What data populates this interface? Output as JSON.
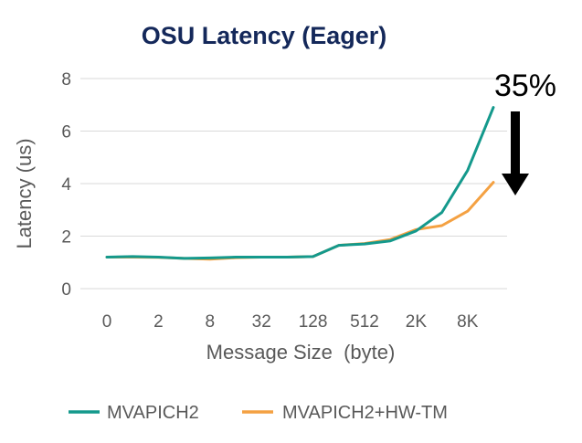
{
  "chart_data": {
    "type": "line",
    "title": "OSU Latency (Eager)",
    "xlabel": "Message Size  (byte)",
    "ylabel": "Latency (us)",
    "ylim": [
      0,
      8
    ],
    "yticks": [
      "0",
      "2",
      "4",
      "6",
      "8"
    ],
    "grid": true,
    "legend_position": "bottom",
    "tick_labels": [
      "0",
      "2",
      "8",
      "32",
      "128",
      "512",
      "2K",
      "8K"
    ],
    "tick_every": 2,
    "point_count": 16,
    "series": [
      {
        "name": "MVAPICH2",
        "color": "#14998c",
        "values": [
          1.2,
          1.22,
          1.2,
          1.15,
          1.17,
          1.2,
          1.2,
          1.2,
          1.22,
          1.65,
          1.7,
          1.82,
          2.2,
          2.9,
          4.5,
          6.9
        ]
      },
      {
        "name": "MVAPICH2+HW-TM",
        "color": "#f4a142",
        "values": [
          1.2,
          1.2,
          1.19,
          1.15,
          1.12,
          1.18,
          1.2,
          1.2,
          1.22,
          1.65,
          1.72,
          1.87,
          2.25,
          2.4,
          2.95,
          4.05
        ]
      }
    ],
    "annotation": {
      "text": "35%",
      "arrow": "down"
    }
  }
}
